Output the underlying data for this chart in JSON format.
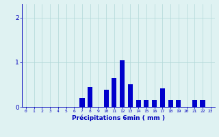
{
  "hours": [
    0,
    1,
    2,
    3,
    4,
    5,
    6,
    7,
    8,
    9,
    10,
    11,
    12,
    13,
    14,
    15,
    16,
    17,
    18,
    19,
    20,
    21,
    22,
    23
  ],
  "values": [
    0,
    0,
    0,
    0,
    0,
    0,
    0,
    0.2,
    0.45,
    0,
    0.38,
    0.65,
    1.05,
    0.5,
    0.15,
    0.15,
    0.15,
    0.42,
    0.15,
    0.15,
    0,
    0.15,
    0.15,
    0
  ],
  "bar_color": "#0000cc",
  "bg_color": "#dff2f2",
  "grid_color": "#b0d8d8",
  "xlabel": "Précipitations 6min ( mm )",
  "xlabel_color": "#0000bb",
  "yticks": [
    0,
    1,
    2
  ],
  "ylim": [
    0,
    2.3
  ],
  "xlim": [
    -0.5,
    23.5
  ]
}
